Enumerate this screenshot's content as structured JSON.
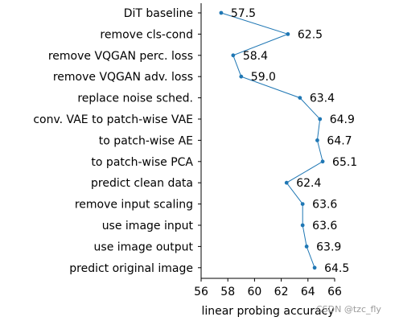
{
  "chart_data": {
    "type": "line",
    "orientation": "horizontal",
    "categories": [
      "DiT baseline",
      "remove cls-cond",
      "remove VQGAN perc. loss",
      "remove VQGAN adv. loss",
      "replace noise sched.",
      "conv. VAE to patch-wise VAE",
      "to patch-wise AE",
      "to patch-wise PCA",
      "predict clean data",
      "remove input scaling",
      "use image input",
      "use image output",
      "predict original image"
    ],
    "values": [
      57.5,
      62.5,
      58.4,
      59.0,
      63.4,
      64.9,
      64.7,
      65.1,
      62.4,
      63.6,
      63.6,
      63.9,
      64.5
    ],
    "value_labels": [
      "57.5",
      "62.5",
      "58.4",
      "59.0",
      "63.4",
      "64.9",
      "64.7",
      "65.1",
      "62.4",
      "63.6",
      "63.6",
      "63.9",
      "64.5"
    ],
    "xlabel": "linear probing accuracy",
    "xlim": [
      56,
      66
    ],
    "xticks": [
      56,
      58,
      60,
      62,
      64,
      66
    ],
    "series_color": "#1f77b4",
    "grid": false
  },
  "watermark": "CSDN @tzc_fly"
}
